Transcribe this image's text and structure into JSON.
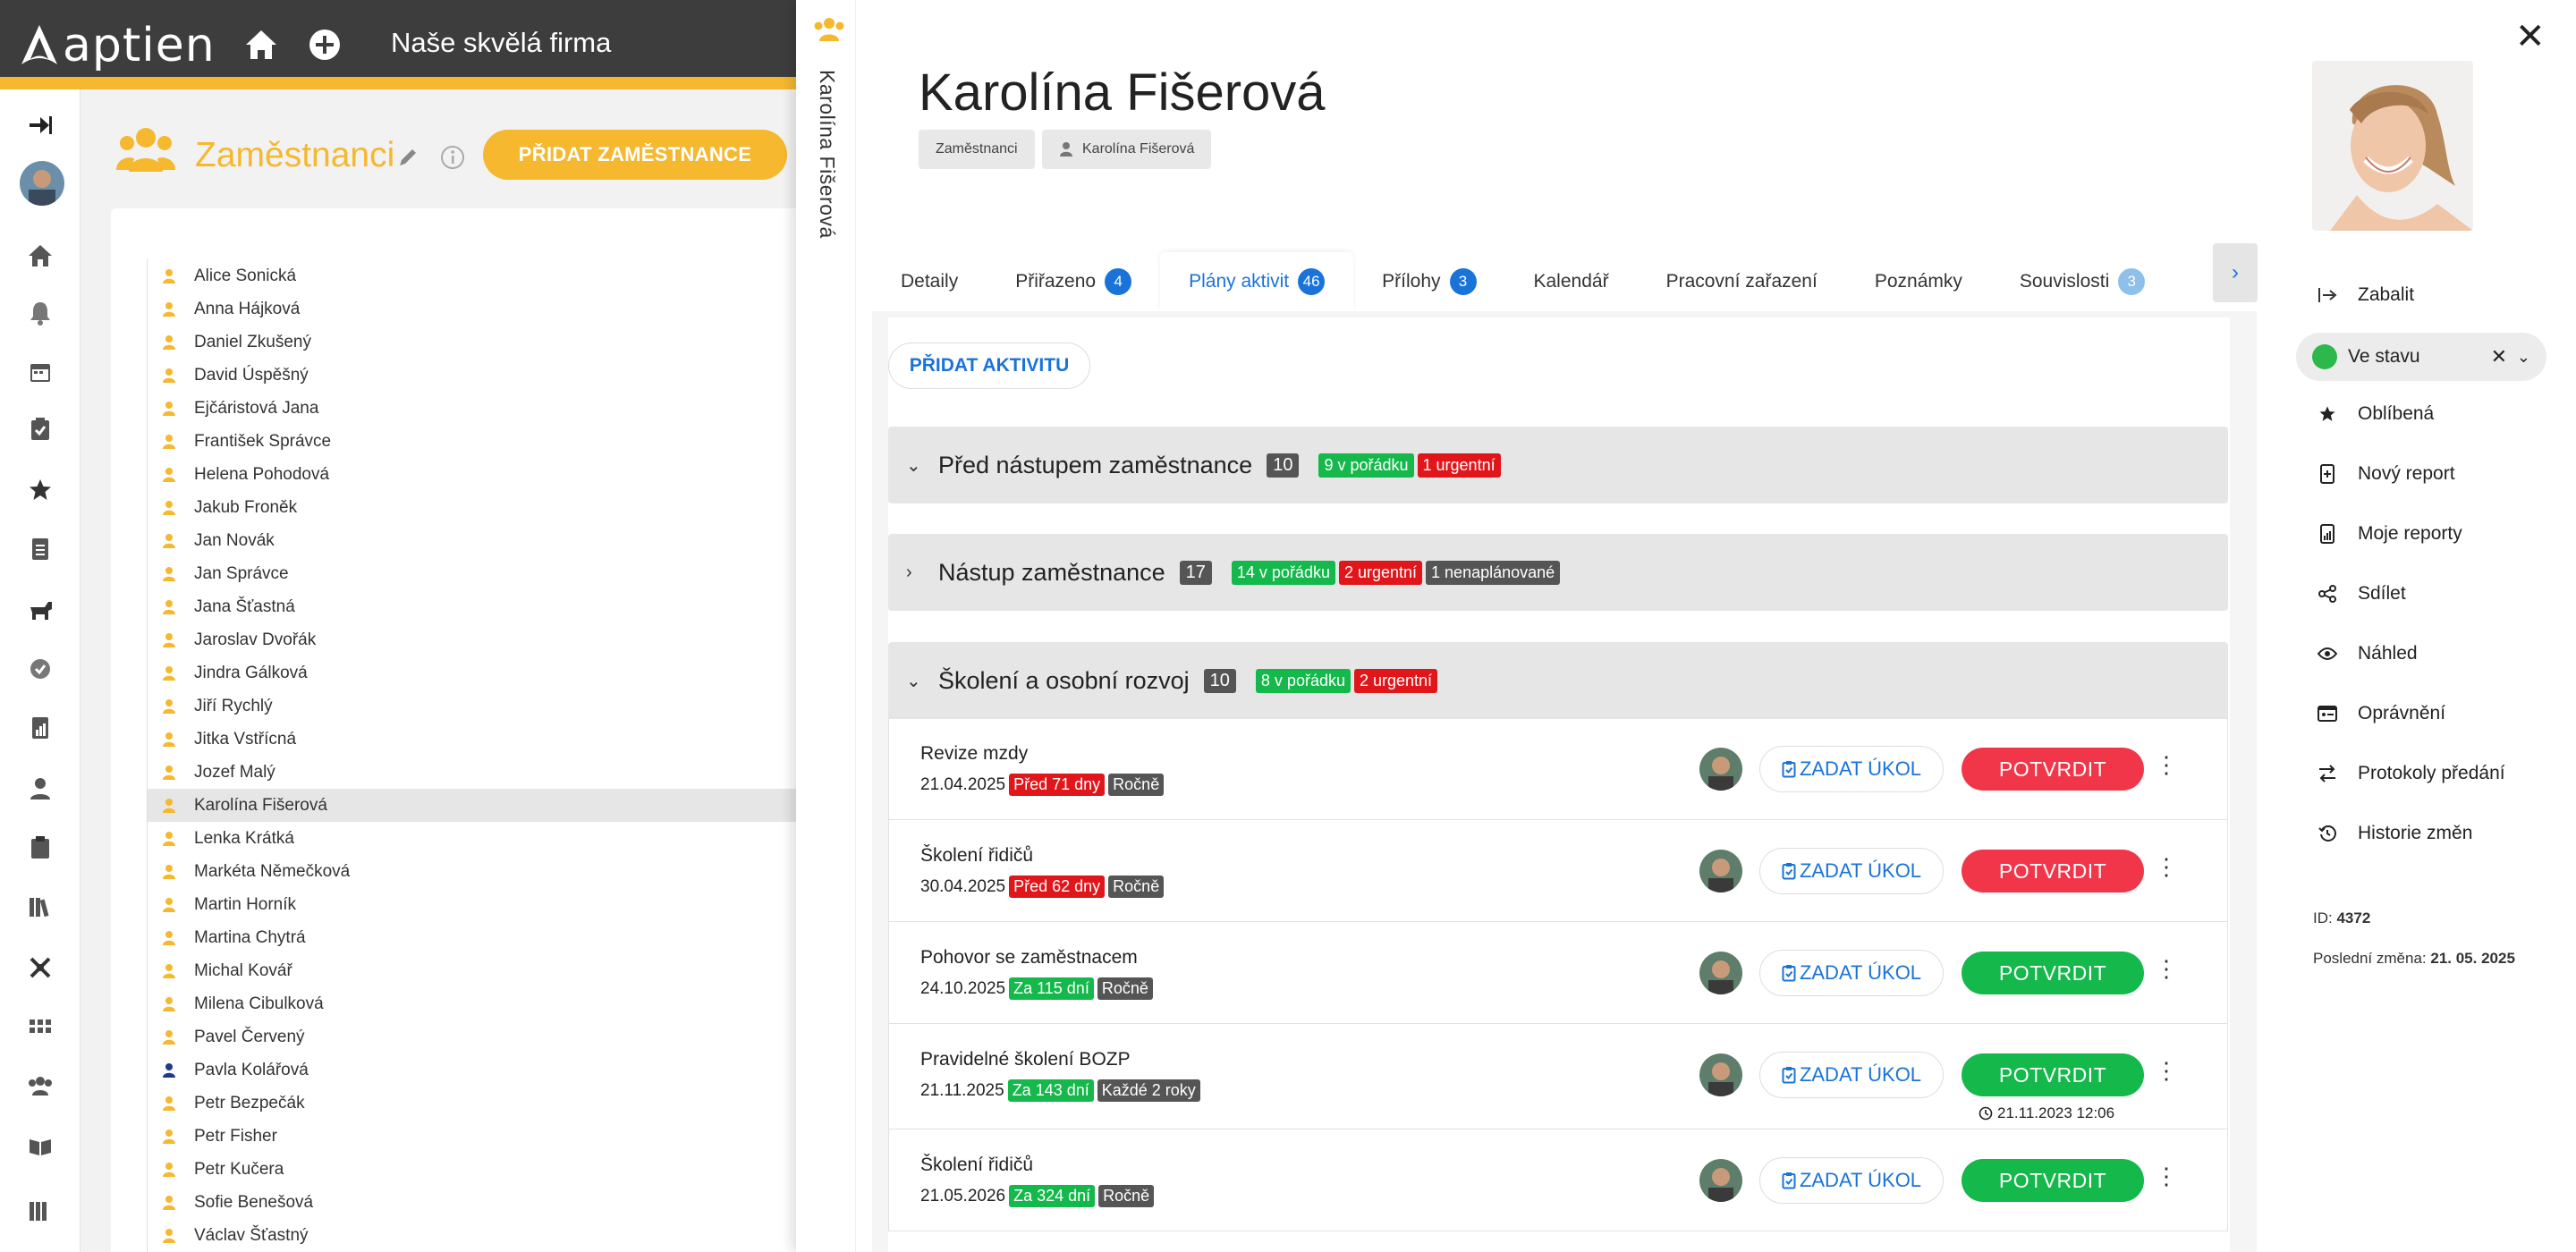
{
  "app": {
    "logo_text": "aptien",
    "company": "Naše skvělá firma"
  },
  "employees": {
    "title": "Zaměstnanci",
    "add_button": "PŘIDAT ZAMĚSTNANCE",
    "list": [
      "Alice Sonická",
      "Anna Hájková",
      "Daniel Zkušený",
      "David Úspěšný",
      "Ejčáristová Jana",
      "František Správce",
      "Helena Pohodová",
      "Jakub Froněk",
      "Jan Novák",
      "Jan Správce",
      "Jana Šťastná",
      "Jaroslav Dvořák",
      "Jindra Gálková",
      "Jiří Rychlý",
      "Jitka Vstřícná",
      "Jozef Malý",
      "Karolína Fišerová",
      "Lenka Krátká",
      "Markéta Němečková",
      "Martin Horník",
      "Martina Chytrá",
      "Michal Kovář",
      "Milena Cibulková",
      "Pavel Červený",
      "Pavla Kolářová",
      "Petr Bezpečák",
      "Petr Fisher",
      "Petr Kučera",
      "Sofie Benešová",
      "Václav Šťastný"
    ],
    "selected": "Karolína Fišerová"
  },
  "detail": {
    "vertical_name": "Karolína Fišerová",
    "title": "Karolína Fišerová",
    "breadcrumb": [
      "Zaměstnanci",
      "Karolína Fišerová"
    ],
    "tabs": [
      {
        "label": "Detaily"
      },
      {
        "label": "Přiřazeno",
        "badge": "4"
      },
      {
        "label": "Plány aktivit",
        "badge": "46"
      },
      {
        "label": "Přílohy",
        "badge": "3"
      },
      {
        "label": "Kalendář"
      },
      {
        "label": "Pracovní zařazení"
      },
      {
        "label": "Poznámky"
      },
      {
        "label": "Souvislosti",
        "badge": "3"
      }
    ],
    "active_tab": "Plány aktivit",
    "add_activity": "PŘIDAT AKTIVITU"
  },
  "sections": [
    {
      "title": "Před nástupem zaměstnance",
      "count": "10",
      "ok": "9 v pořádku",
      "urgent": "1 urgentní"
    },
    {
      "title": "Nástup zaměstnance",
      "count": "17",
      "ok": "14 v pořádku",
      "urgent": "2 urgentní",
      "unplanned": "1 nenaplánované"
    },
    {
      "title": "Školení a osobní rozvoj",
      "count": "10",
      "ok": "8 v pořádku",
      "urgent": "2 urgentní"
    }
  ],
  "activities": [
    {
      "name": "Revize mzdy",
      "date": "21.04.2025",
      "due": "Před 71 dny",
      "period": "Ročně",
      "task": "ZADAT ÚKOL",
      "confirm": "POTVRDIT"
    },
    {
      "name": "Školení řidičů",
      "date": "30.04.2025",
      "due": "Před 62 dny",
      "period": "Ročně",
      "task": "ZADAT ÚKOL",
      "confirm": "POTVRDIT"
    },
    {
      "name": "Pohovor se zaměstnacem",
      "date": "24.10.2025",
      "due": "Za 115 dní",
      "period": "Ročně",
      "task": "ZADAT ÚKOL",
      "confirm": "POTVRDIT"
    },
    {
      "name": "Pravidelné školení BOZP",
      "date": "21.11.2025",
      "due": "Za 143 dní",
      "period": "Každé 2 roky",
      "task": "ZADAT ÚKOL",
      "confirm": "POTVRDIT",
      "stamp": "21.11.2023 12:06"
    },
    {
      "name": "Školení řidičů",
      "date": "21.05.2026",
      "due": "Za 324 dní",
      "period": "Ročně",
      "task": "ZADAT ÚKOL",
      "confirm": "POTVRDIT"
    }
  ],
  "right_panel": {
    "collapse": "Zabalit",
    "status": "Ve stavu",
    "items": [
      "Oblíbená",
      "Nový report",
      "Moje reporty",
      "Sdílet",
      "Náhled",
      "Oprávnění",
      "Protokoly předání",
      "Historie změn"
    ],
    "id_label": "ID:",
    "id_value": "4372",
    "changed_label": "Poslední změna:",
    "changed_value": "21. 05. 2025"
  },
  "colors": {
    "brand": "#f5b82e",
    "accent": "#1a73d9",
    "ok": "#14b84b",
    "urgent": "#e0161b",
    "confirm_red": "#f2364a"
  }
}
